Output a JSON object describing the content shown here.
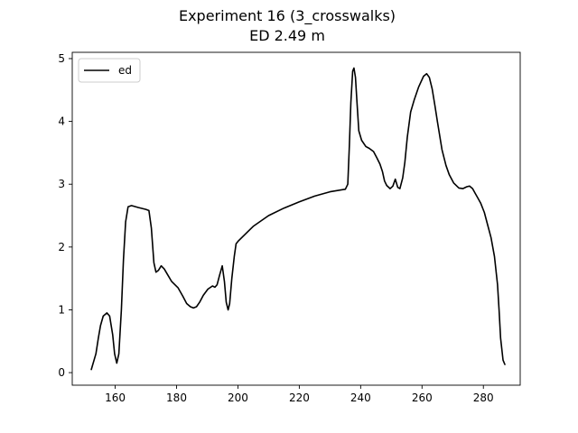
{
  "chart_data": {
    "type": "line",
    "title": "Experiment 16 (3_crosswalks)",
    "subtitle": "ED 2.49 m",
    "xlabel": "",
    "ylabel": "",
    "xlim": [
      146,
      292
    ],
    "ylim": [
      -0.2,
      5.1
    ],
    "xticks": [
      160,
      180,
      200,
      220,
      240,
      260,
      280
    ],
    "yticks": [
      0,
      1,
      2,
      3,
      4,
      5
    ],
    "grid": false,
    "legend": {
      "position": "top-left"
    },
    "series": [
      {
        "name": "ed",
        "color": "#000000",
        "x": [
          152.2,
          153.7,
          154.5,
          155.2,
          156.1,
          157.3,
          158.2,
          159.2,
          159.8,
          160.5,
          161.2,
          162.0,
          162.7,
          163.4,
          164.2,
          165.3,
          167.5,
          170.0,
          171.0,
          171.8,
          172.6,
          173.3,
          174.1,
          175.0,
          176.0,
          177.2,
          178.4,
          180.5,
          182.0,
          183.3,
          184.5,
          185.5,
          186.5,
          187.5,
          188.7,
          190.2,
          191.7,
          192.5,
          193.2,
          194.0,
          194.9,
          195.6,
          196.2,
          196.8,
          197.3,
          198.0,
          198.8,
          199.4,
          200.2,
          205.0,
          210.0,
          215.0,
          220.0,
          225.0,
          230.0,
          235.0,
          235.8,
          236.3,
          236.8,
          237.4,
          237.8,
          238.3,
          238.8,
          239.4,
          240.3,
          241.7,
          242.8,
          244.2,
          245.3,
          246.3,
          247.1,
          247.8,
          248.5,
          249.6,
          250.5,
          251.3,
          252.1,
          252.8,
          253.7,
          254.4,
          255.2,
          256.3,
          257.5,
          258.9,
          260.5,
          261.5,
          262.4,
          263.3,
          264.2,
          265.0,
          266.5,
          267.8,
          268.9,
          270.3,
          272.0,
          273.3,
          274.6,
          275.5,
          276.5,
          277.4,
          278.2,
          279.1,
          280.3,
          281.4,
          282.5,
          283.6,
          284.6,
          285.1,
          285.6,
          286.4,
          287.0
        ],
        "y": [
          0.05,
          0.3,
          0.55,
          0.75,
          0.9,
          0.95,
          0.9,
          0.6,
          0.3,
          0.15,
          0.3,
          1.0,
          1.8,
          2.4,
          2.64,
          2.66,
          2.63,
          2.6,
          2.58,
          2.3,
          1.75,
          1.6,
          1.63,
          1.7,
          1.65,
          1.55,
          1.45,
          1.35,
          1.22,
          1.1,
          1.05,
          1.03,
          1.05,
          1.12,
          1.23,
          1.33,
          1.38,
          1.36,
          1.4,
          1.55,
          1.7,
          1.45,
          1.12,
          1.0,
          1.1,
          1.5,
          1.85,
          2.05,
          2.1,
          2.33,
          2.5,
          2.62,
          2.72,
          2.81,
          2.88,
          2.92,
          3.0,
          3.6,
          4.3,
          4.8,
          4.85,
          4.7,
          4.3,
          3.85,
          3.7,
          3.6,
          3.57,
          3.52,
          3.42,
          3.32,
          3.2,
          3.05,
          2.98,
          2.93,
          2.97,
          3.08,
          2.95,
          2.93,
          3.1,
          3.35,
          3.75,
          4.15,
          4.35,
          4.55,
          4.72,
          4.76,
          4.7,
          4.52,
          4.25,
          4.0,
          3.55,
          3.3,
          3.15,
          3.02,
          2.94,
          2.93,
          2.96,
          2.97,
          2.93,
          2.85,
          2.78,
          2.7,
          2.55,
          2.35,
          2.15,
          1.85,
          1.4,
          1.0,
          0.55,
          0.2,
          0.13
        ]
      }
    ]
  }
}
